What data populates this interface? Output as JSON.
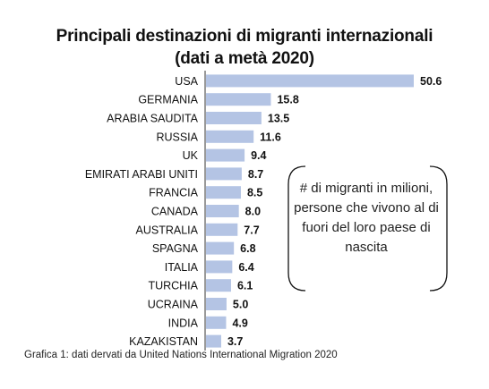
{
  "title_line1": "Principali destinazioni di migranti internazionali",
  "title_line2": "(dati a metà 2020)",
  "annotation": "# di migranti in milioni, persone che vivono al di fuori del loro paese di nascita",
  "caption": "Grafica 1: dati dervati da United Nations International Migration 2020",
  "bar_color": "#b4c4e4",
  "chart_data": {
    "type": "bar",
    "orientation": "horizontal",
    "categories": [
      "USA",
      "GERMANIA",
      "ARABIA SAUDITA",
      "RUSSIA",
      "UK",
      "EMIRATI ARABI UNITI",
      "FRANCIA",
      "CANADA",
      "AUSTRALIA",
      "SPAGNA",
      "ITALIA",
      "TURCHIA",
      "UCRAINA",
      "INDIA",
      "KAZAKISTAN"
    ],
    "values": [
      50.6,
      15.8,
      13.5,
      11.6,
      9.4,
      8.7,
      8.5,
      8.0,
      7.7,
      6.8,
      6.4,
      6.1,
      5.0,
      4.9,
      3.7
    ],
    "value_labels": [
      "50.6",
      "15.8",
      "13.5",
      "11.6",
      "9.4",
      "8.7",
      "8.5",
      "8.0",
      "7.7",
      "6.8",
      "6.4",
      "6.1",
      "5.0",
      "4.9",
      "3.7"
    ],
    "xlim": [
      0,
      50.6
    ],
    "grid": false,
    "legend": false
  }
}
